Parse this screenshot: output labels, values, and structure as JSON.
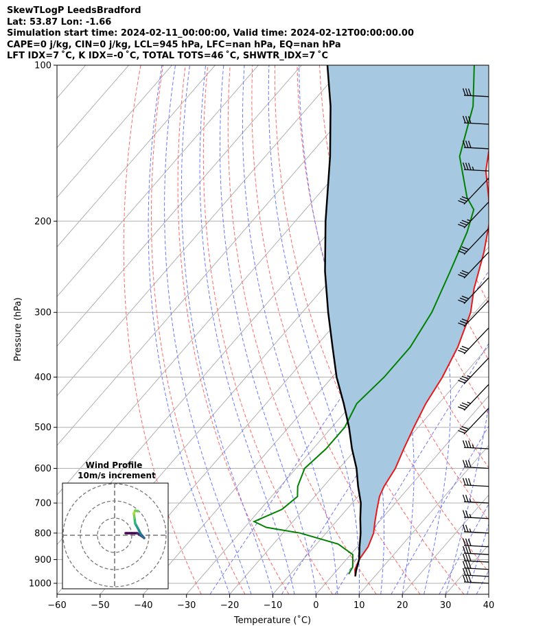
{
  "header": {
    "title": "SkewTLogP LeedsBradford",
    "location": "Lat: 53.87   Lon: -1.66",
    "times": "Simulation start time: 2024-02-11_00:00:00, Valid time: 2024-02-12T00:00:00.00",
    "indices1": "CAPE=0 j/kg, CIN=0 j/kg, LCL=945 hPa, LFC=nan hPa, EQ=nan hPa",
    "indices2": "LFT IDX=7 ˚C, K IDX=-0 ˚C, TOTAL TOTS=46 ˚C, SHWTR_IDX=7 ˚C"
  },
  "chart_data": {
    "type": "line",
    "subtype": "skew-T log-P diagram",
    "xlabel": "Temperature (˚C)",
    "ylabel": "Pressure (hPa)",
    "xlim": [
      -60,
      40
    ],
    "ylim": [
      1050,
      100
    ],
    "y_scale": "log",
    "x_ticks": [
      -60,
      -50,
      -40,
      -30,
      -20,
      -10,
      0,
      10,
      20,
      30,
      40
    ],
    "y_ticks": [
      1000,
      900,
      800,
      700,
      600,
      500,
      400,
      300,
      200,
      100
    ],
    "grid": true,
    "series": [
      {
        "role": "temperature",
        "color": "#e31a1c",
        "points": [
          [
            5.5,
            970
          ],
          [
            4,
            940
          ],
          [
            3,
            900
          ],
          [
            2.5,
            850
          ],
          [
            1,
            800
          ],
          [
            -1,
            760
          ],
          [
            -3,
            720
          ],
          [
            -5,
            680
          ],
          [
            -6,
            650
          ],
          [
            -7,
            600
          ],
          [
            -9,
            550
          ],
          [
            -11,
            500
          ],
          [
            -13,
            450
          ],
          [
            -14.5,
            400
          ],
          [
            -17,
            350
          ],
          [
            -21,
            300
          ],
          [
            -25,
            270
          ],
          [
            -30,
            230
          ],
          [
            -35,
            200
          ],
          [
            -40,
            180
          ],
          [
            -46,
            160
          ],
          [
            -51,
            140
          ],
          [
            -54,
            120
          ],
          [
            -57,
            100
          ]
        ]
      },
      {
        "role": "dewpoint",
        "color": "#008000",
        "points": [
          [
            3.5,
            960
          ],
          [
            3,
            930
          ],
          [
            0.5,
            880
          ],
          [
            -5,
            840
          ],
          [
            -16,
            800
          ],
          [
            -25,
            780
          ],
          [
            -29,
            760
          ],
          [
            -25,
            720
          ],
          [
            -24,
            680
          ],
          [
            -26,
            650
          ],
          [
            -28,
            600
          ],
          [
            -27,
            550
          ],
          [
            -27,
            500
          ],
          [
            -29,
            450
          ],
          [
            -28,
            400
          ],
          [
            -28,
            350
          ],
          [
            -30,
            300
          ],
          [
            -34,
            250
          ],
          [
            -38,
            210
          ],
          [
            -41,
            190
          ],
          [
            -45,
            180
          ],
          [
            -55,
            150
          ],
          [
            -62,
            120
          ],
          [
            -70,
            100
          ]
        ]
      },
      {
        "role": "parcel",
        "color": "#000000",
        "points": [
          [
            5.5,
            970
          ],
          [
            4.5,
            945
          ],
          [
            3,
            900
          ],
          [
            0.5,
            850
          ],
          [
            -2,
            800
          ],
          [
            -5,
            750
          ],
          [
            -8,
            700
          ],
          [
            -12,
            650
          ],
          [
            -16,
            600
          ],
          [
            -21,
            550
          ],
          [
            -26,
            500
          ],
          [
            -32,
            450
          ],
          [
            -39,
            400
          ],
          [
            -46,
            350
          ],
          [
            -54,
            300
          ],
          [
            -63,
            250
          ],
          [
            -73,
            200
          ],
          [
            -85,
            150
          ],
          [
            -95,
            120
          ],
          [
            -104,
            100
          ]
        ]
      }
    ],
    "fill": {
      "color": "#a6c8e0",
      "between": [
        "temperature",
        "parcel"
      ]
    },
    "wind_barbs": [
      {
        "p": 1000,
        "speed": 30
      },
      {
        "p": 970,
        "speed": 30
      },
      {
        "p": 940,
        "speed": 30
      },
      {
        "p": 910,
        "speed": 30
      },
      {
        "p": 880,
        "speed": 30
      },
      {
        "p": 850,
        "speed": 30
      },
      {
        "p": 800,
        "speed": 25
      },
      {
        "p": 750,
        "speed": 25
      },
      {
        "p": 700,
        "speed": 25
      },
      {
        "p": 650,
        "speed": 30
      },
      {
        "p": 600,
        "speed": 40
      },
      {
        "p": 550,
        "speed": 45
      },
      {
        "p": 500,
        "speed": 50
      },
      {
        "p": 450,
        "speed": 55
      },
      {
        "p": 400,
        "speed": 55
      },
      {
        "p": 350,
        "speed": 60
      },
      {
        "p": 310,
        "speed": 60
      },
      {
        "p": 280,
        "speed": 60
      },
      {
        "p": 250,
        "speed": 60
      },
      {
        "p": 225,
        "speed": 60
      },
      {
        "p": 200,
        "speed": 55
      },
      {
        "p": 180,
        "speed": 50
      },
      {
        "p": 160,
        "speed": 45
      },
      {
        "p": 145,
        "speed": 40
      },
      {
        "p": 130,
        "speed": 40
      },
      {
        "p": 115,
        "speed": 40
      }
    ],
    "hodograph": {
      "title": "Wind Profile",
      "subtitle": "10m/s increment",
      "rings": [
        10,
        20,
        30
      ]
    }
  }
}
